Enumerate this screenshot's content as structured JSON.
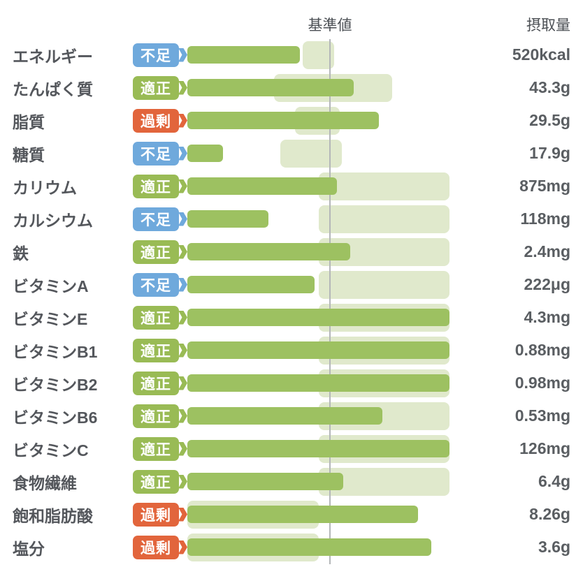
{
  "header": {
    "baseline_label": "基準値",
    "intake_label": "摂取量"
  },
  "status_colors": {
    "low": "#6fa9dc",
    "ok": "#99bb55",
    "high": "#e2653c"
  },
  "bar_colors": {
    "intake": "#9dc161",
    "range": "#e0e9cc"
  },
  "chart_data": {
    "type": "bar",
    "orientation": "horizontal",
    "title": "",
    "baseline_label": "基準値",
    "value_header": "摂取量",
    "axis_pct_range": [
      0,
      200
    ],
    "baseline_pct": 100,
    "grid": false,
    "rows": [
      {
        "label": "エネルギー",
        "status": "不足",
        "status_type": "low",
        "value": "520kcal",
        "intake_pct": 86,
        "range_pct": [
          88,
          112
        ]
      },
      {
        "label": "たんぱく質",
        "status": "適正",
        "status_type": "ok",
        "value": "43.3g",
        "intake_pct": 127,
        "range_pct": [
          66,
          156
        ]
      },
      {
        "label": "脂質",
        "status": "過剰",
        "status_type": "high",
        "value": "29.5g",
        "intake_pct": 146,
        "range_pct": [
          82,
          116
        ]
      },
      {
        "label": "糖質",
        "status": "不足",
        "status_type": "low",
        "value": "17.9g",
        "intake_pct": 27,
        "range_pct": [
          71,
          118
        ]
      },
      {
        "label": "カリウム",
        "status": "適正",
        "status_type": "ok",
        "value": "875mg",
        "intake_pct": 114,
        "range_pct": [
          100,
          200
        ]
      },
      {
        "label": "カルシウム",
        "status": "不足",
        "status_type": "low",
        "value": "118mg",
        "intake_pct": 62,
        "range_pct": [
          100,
          200
        ]
      },
      {
        "label": "鉄",
        "status": "適正",
        "status_type": "ok",
        "value": "2.4mg",
        "intake_pct": 124,
        "range_pct": [
          100,
          200
        ]
      },
      {
        "label": "ビタミンA",
        "status": "不足",
        "status_type": "low",
        "value": "222μg",
        "intake_pct": 97,
        "range_pct": [
          100,
          200
        ]
      },
      {
        "label": "ビタミンE",
        "status": "適正",
        "status_type": "ok",
        "value": "4.3mg",
        "intake_pct": 200,
        "range_pct": [
          100,
          200
        ]
      },
      {
        "label": "ビタミンB1",
        "status": "適正",
        "status_type": "ok",
        "value": "0.88mg",
        "intake_pct": 200,
        "range_pct": [
          100,
          200
        ]
      },
      {
        "label": "ビタミンB2",
        "status": "適正",
        "status_type": "ok",
        "value": "0.98mg",
        "intake_pct": 200,
        "range_pct": [
          100,
          200
        ]
      },
      {
        "label": "ビタミンB6",
        "status": "適正",
        "status_type": "ok",
        "value": "0.53mg",
        "intake_pct": 149,
        "range_pct": [
          100,
          200
        ]
      },
      {
        "label": "ビタミンC",
        "status": "適正",
        "status_type": "ok",
        "value": "126mg",
        "intake_pct": 200,
        "range_pct": [
          100,
          200
        ]
      },
      {
        "label": "食物繊維",
        "status": "適正",
        "status_type": "ok",
        "value": "6.4g",
        "intake_pct": 119,
        "range_pct": [
          100,
          200
        ]
      },
      {
        "label": "飽和脂肪酸",
        "status": "過剰",
        "status_type": "high",
        "value": "8.26g",
        "intake_pct": 176,
        "range_pct": [
          0,
          100
        ]
      },
      {
        "label": "塩分",
        "status": "過剰",
        "status_type": "high",
        "value": "3.6g",
        "intake_pct": 186,
        "range_pct": [
          0,
          100
        ]
      }
    ]
  }
}
